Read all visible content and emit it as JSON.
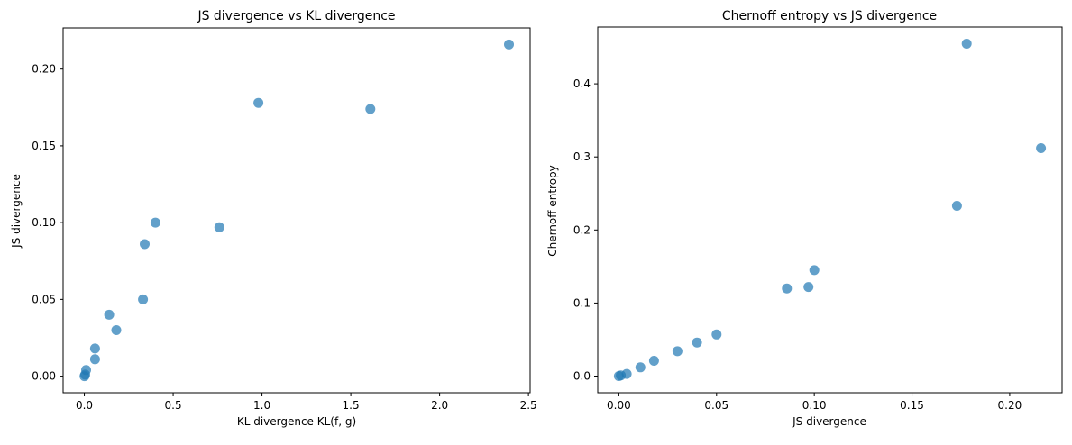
{
  "figure": {
    "background": "#ffffff",
    "spine_color": "#000000",
    "text_color": "#000000"
  },
  "chart_data": [
    {
      "type": "scatter",
      "title": "JS divergence vs KL divergence",
      "xlabel": "KL divergence KL(f, g)",
      "ylabel": "JS divergence",
      "xlim": [
        -0.1195,
        2.5095
      ],
      "ylim": [
        -0.0108,
        0.2268
      ],
      "grid": false,
      "legend": null,
      "marker_color": "#1f77b4",
      "marker_alpha": 0.7,
      "xticks": {
        "values": [
          0.0,
          0.5,
          1.0,
          1.5,
          2.0,
          2.5
        ],
        "labels": [
          "0.0",
          "0.5",
          "1.0",
          "1.5",
          "2.0",
          "2.5"
        ]
      },
      "yticks": {
        "values": [
          0.0,
          0.05,
          0.1,
          0.15,
          0.2
        ],
        "labels": [
          "0.00",
          "0.05",
          "0.10",
          "0.15",
          "0.20"
        ]
      },
      "points": [
        [
          0.001,
          0.0
        ],
        [
          0.005,
          0.001
        ],
        [
          0.01,
          0.004
        ],
        [
          0.06,
          0.011
        ],
        [
          0.06,
          0.018
        ],
        [
          0.14,
          0.04
        ],
        [
          0.18,
          0.03
        ],
        [
          0.33,
          0.05
        ],
        [
          0.34,
          0.086
        ],
        [
          0.4,
          0.1
        ],
        [
          0.76,
          0.097
        ],
        [
          0.98,
          0.178
        ],
        [
          1.61,
          0.174
        ],
        [
          2.39,
          0.216
        ]
      ]
    },
    {
      "type": "scatter",
      "title": "Chernoff entropy vs JS divergence",
      "xlabel": "JS divergence",
      "ylabel": "Chernoff entropy",
      "xlim": [
        -0.0108,
        0.2268
      ],
      "ylim": [
        -0.0228,
        0.4778
      ],
      "grid": false,
      "legend": null,
      "marker_color": "#1f77b4",
      "marker_alpha": 0.7,
      "xticks": {
        "values": [
          0.0,
          0.05,
          0.1,
          0.15,
          0.2
        ],
        "labels": [
          "0.00",
          "0.05",
          "0.10",
          "0.15",
          "0.20"
        ]
      },
      "yticks": {
        "values": [
          0.0,
          0.1,
          0.2,
          0.3,
          0.4
        ],
        "labels": [
          "0.0",
          "0.1",
          "0.2",
          "0.3",
          "0.4"
        ]
      },
      "points": [
        [
          0.0,
          0.0
        ],
        [
          0.001,
          0.001
        ],
        [
          0.004,
          0.003
        ],
        [
          0.011,
          0.012
        ],
        [
          0.018,
          0.021
        ],
        [
          0.03,
          0.034
        ],
        [
          0.04,
          0.046
        ],
        [
          0.05,
          0.057
        ],
        [
          0.086,
          0.12
        ],
        [
          0.097,
          0.122
        ],
        [
          0.1,
          0.145
        ],
        [
          0.173,
          0.233
        ],
        [
          0.178,
          0.455
        ],
        [
          0.216,
          0.312
        ]
      ]
    }
  ]
}
